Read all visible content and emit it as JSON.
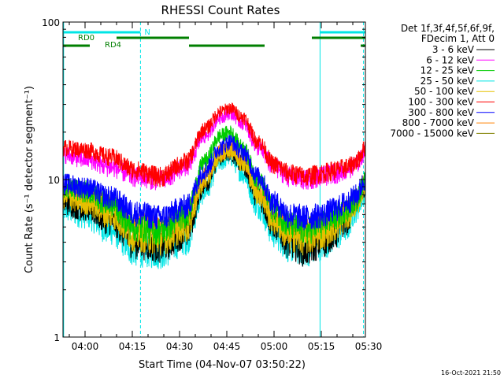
{
  "chart_data": {
    "type": "line",
    "title": "RHESSI Count Rates",
    "xlabel": "Start Time (04-Nov-07 03:50:22)",
    "ylabel": "Count Rate (s⁻¹ detector segment⁻¹)",
    "yscale": "log",
    "ylim": [
      1,
      100
    ],
    "xlim_minutes": [
      3.0,
      99.0
    ],
    "x_tick_labels": [
      "04:00",
      "04:15",
      "04:30",
      "04:45",
      "05:00",
      "05:15",
      "05:30"
    ],
    "x_tick_minutes": [
      10,
      25,
      40,
      55,
      70,
      85,
      100
    ],
    "y_tick_labels": [
      "1",
      "10",
      "100"
    ],
    "y_tick_values": [
      1,
      10,
      100
    ],
    "legend_header": [
      "Det 1f,3f,4f,5f,6f,9f,",
      "FDecim 1, Att 0"
    ],
    "legend_position": "right",
    "series": [
      {
        "name": "3 - 6 keV",
        "color": "#000000",
        "anchors": [
          [
            3,
            7.2
          ],
          [
            10,
            6.6
          ],
          [
            18,
            5.5
          ],
          [
            26,
            4.0
          ],
          [
            34,
            3.8
          ],
          [
            42,
            4.6
          ],
          [
            48,
            9.5
          ],
          [
            53,
            14.0
          ],
          [
            56,
            15.0
          ],
          [
            60,
            12.5
          ],
          [
            65,
            7.8
          ],
          [
            70,
            5.2
          ],
          [
            75,
            4.0
          ],
          [
            80,
            3.6
          ],
          [
            85,
            4.0
          ],
          [
            89,
            4.5
          ],
          [
            93,
            5.5
          ],
          [
            96,
            7.5
          ],
          [
            99,
            9.0
          ]
        ]
      },
      {
        "name": "6 - 12 keV",
        "color": "#ff00ff",
        "anchors": [
          [
            3,
            14.5
          ],
          [
            10,
            13.5
          ],
          [
            18,
            12.0
          ],
          [
            26,
            10.5
          ],
          [
            34,
            10.0
          ],
          [
            42,
            12.0
          ],
          [
            48,
            19.0
          ],
          [
            53,
            25.0
          ],
          [
            56,
            26.5
          ],
          [
            60,
            23.0
          ],
          [
            65,
            16.0
          ],
          [
            70,
            12.0
          ],
          [
            75,
            10.5
          ],
          [
            80,
            10.0
          ],
          [
            85,
            10.5
          ],
          [
            89,
            11.0
          ],
          [
            93,
            11.5
          ],
          [
            96,
            12.5
          ],
          [
            99,
            15.0
          ]
        ]
      },
      {
        "name": "12 - 25 keV",
        "color": "#00cc00",
        "anchors": [
          [
            3,
            9.0
          ],
          [
            10,
            8.5
          ],
          [
            18,
            7.0
          ],
          [
            26,
            5.0
          ],
          [
            34,
            4.8
          ],
          [
            42,
            6.0
          ],
          [
            48,
            13.0
          ],
          [
            53,
            19.0
          ],
          [
            56,
            20.0
          ],
          [
            60,
            16.0
          ],
          [
            65,
            10.0
          ],
          [
            70,
            6.5
          ],
          [
            75,
            5.2
          ],
          [
            80,
            4.8
          ],
          [
            85,
            5.2
          ],
          [
            89,
            5.8
          ],
          [
            93,
            6.5
          ],
          [
            96,
            7.5
          ],
          [
            99,
            10.0
          ]
        ]
      },
      {
        "name": "25 - 50 keV",
        "color": "#00e5e5",
        "anchors": [
          [
            3,
            6.5
          ],
          [
            10,
            6.0
          ],
          [
            18,
            4.8
          ],
          [
            26,
            3.6
          ],
          [
            34,
            3.5
          ],
          [
            42,
            4.2
          ],
          [
            48,
            8.5
          ],
          [
            53,
            13.0
          ],
          [
            56,
            14.0
          ],
          [
            60,
            11.0
          ],
          [
            65,
            6.8
          ],
          [
            70,
            4.6
          ],
          [
            75,
            3.8
          ],
          [
            80,
            3.6
          ],
          [
            85,
            3.9
          ],
          [
            89,
            4.3
          ],
          [
            93,
            5.0
          ],
          [
            96,
            6.5
          ],
          [
            99,
            8.5
          ]
        ]
      },
      {
        "name": "50 - 100 keV",
        "color": "#e5c000",
        "anchors": [
          [
            3,
            7.8
          ],
          [
            10,
            7.2
          ],
          [
            18,
            6.0
          ],
          [
            26,
            4.4
          ],
          [
            34,
            4.2
          ],
          [
            42,
            5.0
          ],
          [
            48,
            10.0
          ],
          [
            53,
            14.5
          ],
          [
            56,
            15.5
          ],
          [
            60,
            13.0
          ],
          [
            65,
            8.2
          ],
          [
            70,
            5.5
          ],
          [
            75,
            4.4
          ],
          [
            80,
            4.2
          ],
          [
            85,
            4.5
          ],
          [
            89,
            5.0
          ],
          [
            93,
            5.8
          ],
          [
            96,
            7.0
          ],
          [
            99,
            9.2
          ]
        ]
      },
      {
        "name": "100 - 300 keV",
        "color": "#ff0000",
        "anchors": [
          [
            3,
            16.0
          ],
          [
            10,
            15.5
          ],
          [
            18,
            14.0
          ],
          [
            26,
            11.5
          ],
          [
            34,
            10.5
          ],
          [
            42,
            13.0
          ],
          [
            48,
            21.0
          ],
          [
            53,
            27.0
          ],
          [
            56,
            28.5
          ],
          [
            60,
            25.0
          ],
          [
            65,
            17.5
          ],
          [
            70,
            12.5
          ],
          [
            75,
            11.0
          ],
          [
            80,
            10.5
          ],
          [
            85,
            11.0
          ],
          [
            89,
            11.5
          ],
          [
            93,
            12.0
          ],
          [
            96,
            13.0
          ],
          [
            99,
            16.0
          ]
        ]
      },
      {
        "name": "300 - 800 keV",
        "color": "#0000ff",
        "anchors": [
          [
            3,
            9.5
          ],
          [
            10,
            9.0
          ],
          [
            18,
            7.8
          ],
          [
            26,
            6.2
          ],
          [
            34,
            5.8
          ],
          [
            42,
            6.8
          ],
          [
            48,
            11.5
          ],
          [
            53,
            16.0
          ],
          [
            56,
            17.5
          ],
          [
            60,
            15.0
          ],
          [
            65,
            10.5
          ],
          [
            70,
            7.2
          ],
          [
            75,
            6.0
          ],
          [
            80,
            5.8
          ],
          [
            85,
            6.0
          ],
          [
            89,
            6.5
          ],
          [
            93,
            7.2
          ],
          [
            96,
            8.0
          ],
          [
            99,
            10.0
          ]
        ]
      },
      {
        "name": "800 - 7000 keV",
        "color": "#ff8000",
        "anchors": [
          [
            3,
            8.5
          ],
          [
            10,
            8.0
          ],
          [
            18,
            6.8
          ],
          [
            26,
            5.2
          ],
          [
            34,
            5.0
          ],
          [
            42,
            5.8
          ],
          [
            48,
            10.5
          ],
          [
            53,
            15.0
          ],
          [
            56,
            16.0
          ],
          [
            60,
            13.5
          ],
          [
            65,
            8.8
          ],
          [
            70,
            6.0
          ],
          [
            75,
            5.0
          ],
          [
            80,
            4.8
          ],
          [
            85,
            5.1
          ],
          [
            89,
            5.6
          ],
          [
            93,
            6.3
          ],
          [
            96,
            7.5
          ],
          [
            99,
            9.5
          ]
        ]
      },
      {
        "name": "7000 - 15000 keV",
        "color": "#808000",
        "anchors": []
      }
    ],
    "flag_bars": [
      {
        "label": "N",
        "color": "#00e5e5",
        "segments_minutes": [
          [
            3,
            27.6
          ],
          [
            84.6,
            99
          ]
        ]
      },
      {
        "label": "RD0",
        "color": "#007f00",
        "segments_minutes": [
          [
            20.0,
            43.0
          ],
          [
            82.0,
            99
          ]
        ]
      },
      {
        "label": "RD4",
        "color": "#007f00",
        "segments_minutes": [
          [
            3,
            11.5
          ],
          [
            43.0,
            67.0
          ],
          [
            97.5,
            99
          ]
        ]
      }
    ],
    "vertical_lines": [
      {
        "minute": 3.2,
        "style": "solid",
        "color": "#00e5e5"
      },
      {
        "minute": 27.6,
        "style": "dashed",
        "color": "#00e5e5"
      },
      {
        "minute": 84.6,
        "style": "solid",
        "color": "#00e5e5"
      },
      {
        "minute": 98.4,
        "style": "dashed",
        "color": "#00e5e5"
      }
    ]
  },
  "footer": {
    "timestamp": "16-Oct-2021 21:50"
  }
}
